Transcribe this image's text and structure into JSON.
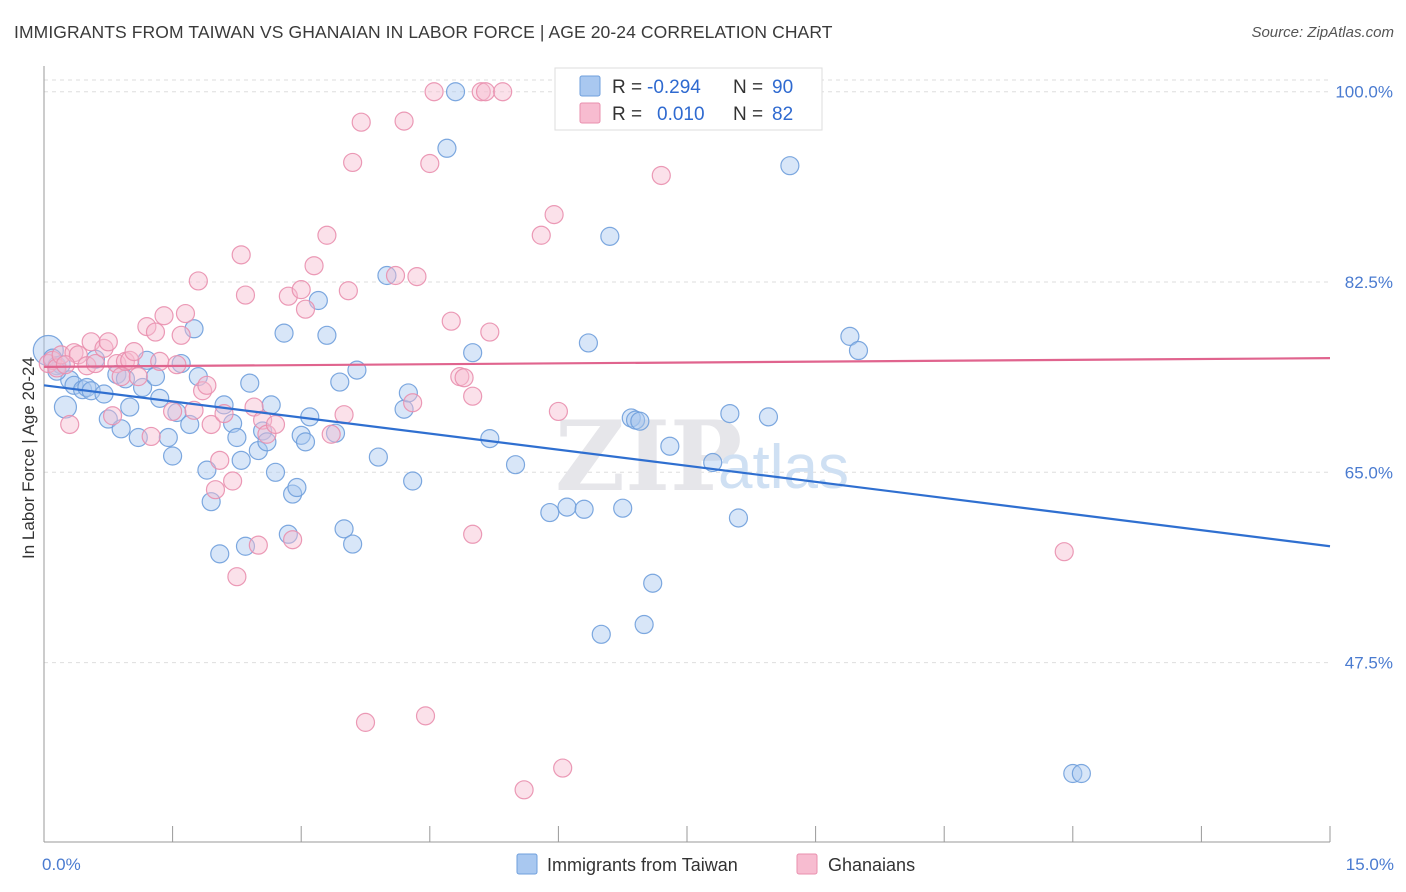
{
  "title": "IMMIGRANTS FROM TAIWAN VS GHANAIAN IN LABOR FORCE | AGE 20-24 CORRELATION CHART",
  "source": "Source: ZipAtlas.com",
  "watermark": {
    "zip": "ZIP",
    "atlas": "atlas"
  },
  "legend": {
    "rows": [
      {
        "r_label": "R =",
        "r_value": "-0.294",
        "n_label": "N =",
        "n_value": "90",
        "color": "#a9c8f0",
        "stroke": "#6f9fdc"
      },
      {
        "r_label": "R =",
        "r_value": "0.010",
        "n_label": "N =",
        "n_value": "82",
        "color": "#f7bcd0",
        "stroke": "#e98fae"
      }
    ]
  },
  "chart_data": {
    "type": "scatter",
    "ylabel": "In Labor Force | Age 20-24",
    "xlim": [
      0,
      15
    ],
    "ylim": [
      31,
      102
    ],
    "y_ticks": [
      {
        "value": 47.5,
        "label": "47.5%"
      },
      {
        "value": 65.0,
        "label": "65.0%"
      },
      {
        "value": 82.5,
        "label": "82.5%"
      },
      {
        "value": 100.0,
        "label": "100.0%"
      }
    ],
    "x_tick_labels": [
      {
        "value": 0,
        "label": "0.0%"
      },
      {
        "value": 15,
        "label": "15.0%"
      }
    ],
    "grid": true,
    "series": [
      {
        "name": "Immigrants from Taiwan",
        "color": "#a9c8f0",
        "stroke": "#6f9fdc",
        "trend": {
          "x": [
            0,
            15
          ],
          "y": [
            73.0,
            58.2
          ],
          "color": "#2f6fd0"
        },
        "points": [
          [
            0.05,
            76.2
          ],
          [
            0.1,
            75.5
          ],
          [
            0.15,
            74.8
          ],
          [
            0.2,
            74.9
          ],
          [
            0.25,
            71.0
          ],
          [
            0.3,
            73.5
          ],
          [
            0.35,
            73.0
          ],
          [
            0.45,
            72.6
          ],
          [
            0.5,
            72.8
          ],
          [
            0.55,
            72.5
          ],
          [
            0.6,
            75.4
          ],
          [
            0.7,
            72.2
          ],
          [
            0.75,
            69.9
          ],
          [
            0.85,
            74.0
          ],
          [
            0.9,
            69.0
          ],
          [
            0.95,
            73.6
          ],
          [
            1.0,
            71.0
          ],
          [
            1.1,
            68.2
          ],
          [
            1.15,
            72.8
          ],
          [
            1.2,
            75.3
          ],
          [
            1.3,
            73.8
          ],
          [
            1.35,
            71.8
          ],
          [
            1.45,
            68.2
          ],
          [
            1.5,
            66.5
          ],
          [
            1.55,
            70.5
          ],
          [
            1.6,
            75.0
          ],
          [
            1.7,
            69.4
          ],
          [
            1.75,
            78.2
          ],
          [
            1.8,
            73.8
          ],
          [
            1.9,
            65.2
          ],
          [
            1.95,
            62.3
          ],
          [
            2.05,
            57.5
          ],
          [
            2.1,
            71.2
          ],
          [
            2.2,
            69.5
          ],
          [
            2.25,
            68.2
          ],
          [
            2.3,
            66.1
          ],
          [
            2.35,
            58.2
          ],
          [
            2.4,
            73.2
          ],
          [
            2.5,
            67.0
          ],
          [
            2.55,
            68.8
          ],
          [
            2.6,
            67.8
          ],
          [
            2.65,
            71.2
          ],
          [
            2.7,
            65.0
          ],
          [
            2.8,
            77.8
          ],
          [
            2.85,
            59.3
          ],
          [
            2.9,
            63.0
          ],
          [
            2.95,
            63.6
          ],
          [
            3.0,
            68.4
          ],
          [
            3.05,
            67.8
          ],
          [
            3.1,
            70.1
          ],
          [
            3.2,
            80.8
          ],
          [
            3.3,
            77.6
          ],
          [
            3.4,
            68.6
          ],
          [
            3.45,
            73.3
          ],
          [
            3.5,
            59.8
          ],
          [
            3.6,
            58.4
          ],
          [
            3.65,
            74.4
          ],
          [
            3.9,
            66.4
          ],
          [
            4.0,
            83.1
          ],
          [
            4.2,
            70.8
          ],
          [
            4.25,
            72.3
          ],
          [
            4.3,
            64.2
          ],
          [
            4.7,
            94.8
          ],
          [
            4.8,
            100.0
          ],
          [
            5.0,
            76.0
          ],
          [
            5.2,
            68.1
          ],
          [
            5.5,
            65.7
          ],
          [
            5.9,
            61.3
          ],
          [
            6.1,
            61.8
          ],
          [
            6.3,
            61.6
          ],
          [
            6.35,
            76.9
          ],
          [
            6.5,
            50.1
          ],
          [
            6.6,
            86.7
          ],
          [
            6.75,
            61.7
          ],
          [
            6.85,
            70.0
          ],
          [
            6.9,
            69.8
          ],
          [
            6.95,
            69.7
          ],
          [
            7.0,
            51.0
          ],
          [
            7.1,
            54.8
          ],
          [
            7.3,
            67.4
          ],
          [
            7.8,
            65.9
          ],
          [
            8.0,
            70.4
          ],
          [
            8.1,
            60.8
          ],
          [
            8.45,
            70.1
          ],
          [
            8.7,
            93.2
          ],
          [
            9.4,
            77.5
          ],
          [
            9.5,
            76.2
          ],
          [
            12.0,
            37.3
          ],
          [
            12.1,
            37.3
          ],
          [
            0.15,
            74.3
          ]
        ]
      },
      {
        "name": "Ghanaians",
        "color": "#f7bcd0",
        "stroke": "#e98fae",
        "trend": {
          "x": [
            0,
            15
          ],
          "y": [
            74.7,
            75.5
          ],
          "color": "#e0648e"
        },
        "points": [
          [
            0.05,
            75.0
          ],
          [
            0.1,
            75.3
          ],
          [
            0.15,
            74.6
          ],
          [
            0.2,
            75.8
          ],
          [
            0.3,
            69.4
          ],
          [
            0.35,
            76.0
          ],
          [
            0.4,
            75.8
          ],
          [
            0.5,
            74.8
          ],
          [
            0.55,
            77.0
          ],
          [
            0.6,
            75.0
          ],
          [
            0.7,
            76.4
          ],
          [
            0.75,
            77.0
          ],
          [
            0.8,
            70.2
          ],
          [
            0.85,
            75.0
          ],
          [
            0.9,
            73.8
          ],
          [
            0.95,
            75.2
          ],
          [
            1.0,
            75.3
          ],
          [
            1.05,
            76.1
          ],
          [
            1.1,
            73.8
          ],
          [
            1.2,
            78.4
          ],
          [
            1.25,
            68.3
          ],
          [
            1.3,
            77.9
          ],
          [
            1.35,
            75.2
          ],
          [
            1.4,
            79.4
          ],
          [
            1.5,
            70.6
          ],
          [
            1.55,
            74.9
          ],
          [
            1.6,
            77.6
          ],
          [
            1.65,
            79.6
          ],
          [
            1.75,
            70.7
          ],
          [
            1.8,
            82.6
          ],
          [
            1.85,
            72.5
          ],
          [
            1.9,
            73.0
          ],
          [
            1.95,
            69.4
          ],
          [
            2.0,
            63.4
          ],
          [
            2.05,
            66.1
          ],
          [
            2.1,
            70.4
          ],
          [
            2.2,
            64.2
          ],
          [
            2.25,
            55.4
          ],
          [
            2.3,
            85.0
          ],
          [
            2.35,
            81.3
          ],
          [
            2.45,
            71.0
          ],
          [
            2.5,
            58.3
          ],
          [
            2.55,
            69.8
          ],
          [
            2.6,
            68.5
          ],
          [
            2.7,
            69.4
          ],
          [
            2.85,
            81.2
          ],
          [
            2.9,
            58.8
          ],
          [
            3.0,
            81.8
          ],
          [
            3.05,
            80.0
          ],
          [
            3.15,
            84.0
          ],
          [
            3.3,
            86.8
          ],
          [
            3.35,
            68.5
          ],
          [
            3.5,
            70.3
          ],
          [
            3.55,
            81.7
          ],
          [
            3.6,
            93.5
          ],
          [
            3.7,
            97.2
          ],
          [
            3.75,
            42.0
          ],
          [
            4.1,
            83.1
          ],
          [
            4.2,
            97.3
          ],
          [
            4.3,
            71.4
          ],
          [
            4.35,
            83.0
          ],
          [
            4.45,
            42.6
          ],
          [
            4.5,
            93.4
          ],
          [
            4.55,
            100.0
          ],
          [
            4.75,
            78.9
          ],
          [
            4.85,
            73.8
          ],
          [
            4.9,
            73.7
          ],
          [
            5.0,
            72.0
          ],
          [
            5.0,
            59.3
          ],
          [
            5.1,
            100.0
          ],
          [
            5.15,
            100.0
          ],
          [
            5.2,
            77.9
          ],
          [
            5.35,
            100.0
          ],
          [
            5.6,
            35.8
          ],
          [
            5.8,
            86.8
          ],
          [
            5.95,
            88.7
          ],
          [
            6.0,
            70.6
          ],
          [
            6.05,
            37.8
          ],
          [
            7.0,
            100.0
          ],
          [
            7.2,
            92.3
          ],
          [
            11.9,
            57.7
          ],
          [
            0.25,
            74.9
          ]
        ]
      }
    ]
  },
  "bottom_legend": [
    {
      "label": "Immigrants from Taiwan",
      "color": "#a9c8f0",
      "stroke": "#6f9fdc"
    },
    {
      "label": "Ghanaians",
      "color": "#f7bcd0",
      "stroke": "#e98fae"
    }
  ]
}
